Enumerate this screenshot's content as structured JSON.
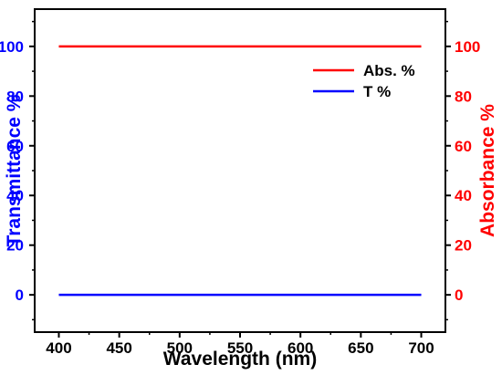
{
  "colors": {
    "absorbance": "#ff0000",
    "transmittance": "#0000ff",
    "axis": "#000000"
  },
  "chart_data": {
    "type": "line",
    "xlabel": "Wavelength (nm)",
    "ylabel_left": "Transmittance %",
    "ylabel_right": "Absorbance %",
    "xlim": [
      380,
      720
    ],
    "ylim": [
      -15,
      115
    ],
    "x_ticks": [
      400,
      450,
      500,
      550,
      600,
      650,
      700
    ],
    "y_ticks": [
      0,
      20,
      40,
      60,
      80,
      100
    ],
    "grid": false,
    "legend_position": "top-right",
    "series": [
      {
        "name": "Abs. %",
        "axis": "right",
        "color": "#ff0000",
        "x": [
          400,
          700
        ],
        "y": [
          100,
          100
        ]
      },
      {
        "name": "T %",
        "axis": "left",
        "color": "#0000ff",
        "x": [
          400,
          700
        ],
        "y": [
          0,
          0
        ]
      }
    ]
  }
}
